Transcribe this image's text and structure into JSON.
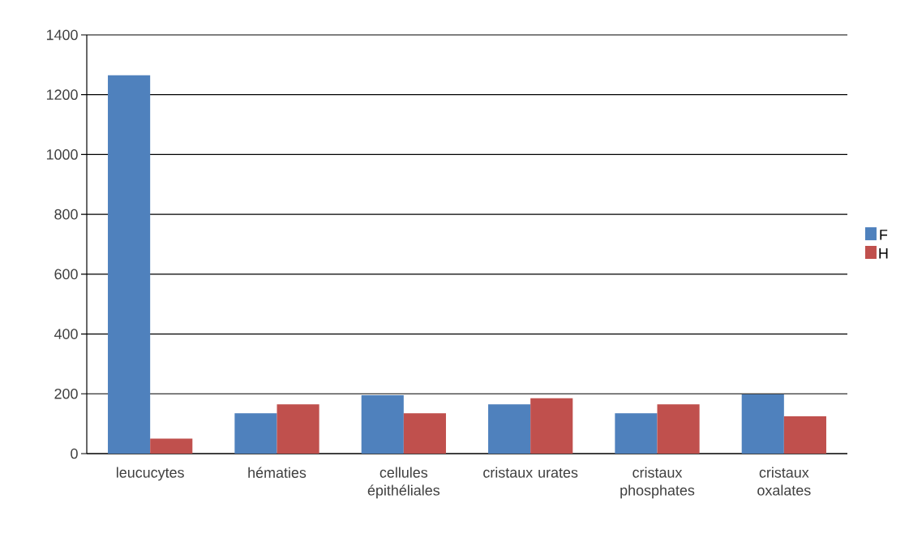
{
  "chart_data": {
    "type": "bar",
    "categories": [
      "leucucytes",
      "hématies",
      "cellules épithéliales",
      "cristaux urates",
      "cristaux phosphates",
      "cristaux oxalates"
    ],
    "series": [
      {
        "name": "F",
        "color": "#4f81bd",
        "values": [
          1265,
          135,
          195,
          165,
          135,
          198
        ]
      },
      {
        "name": "H",
        "color": "#c0504d",
        "values": [
          50,
          165,
          135,
          185,
          165,
          125
        ]
      }
    ],
    "ylim": [
      0,
      1400
    ],
    "yticks": [
      0,
      200,
      400,
      600,
      800,
      1000,
      1200,
      1400
    ],
    "grid": "y",
    "legend": "right"
  }
}
